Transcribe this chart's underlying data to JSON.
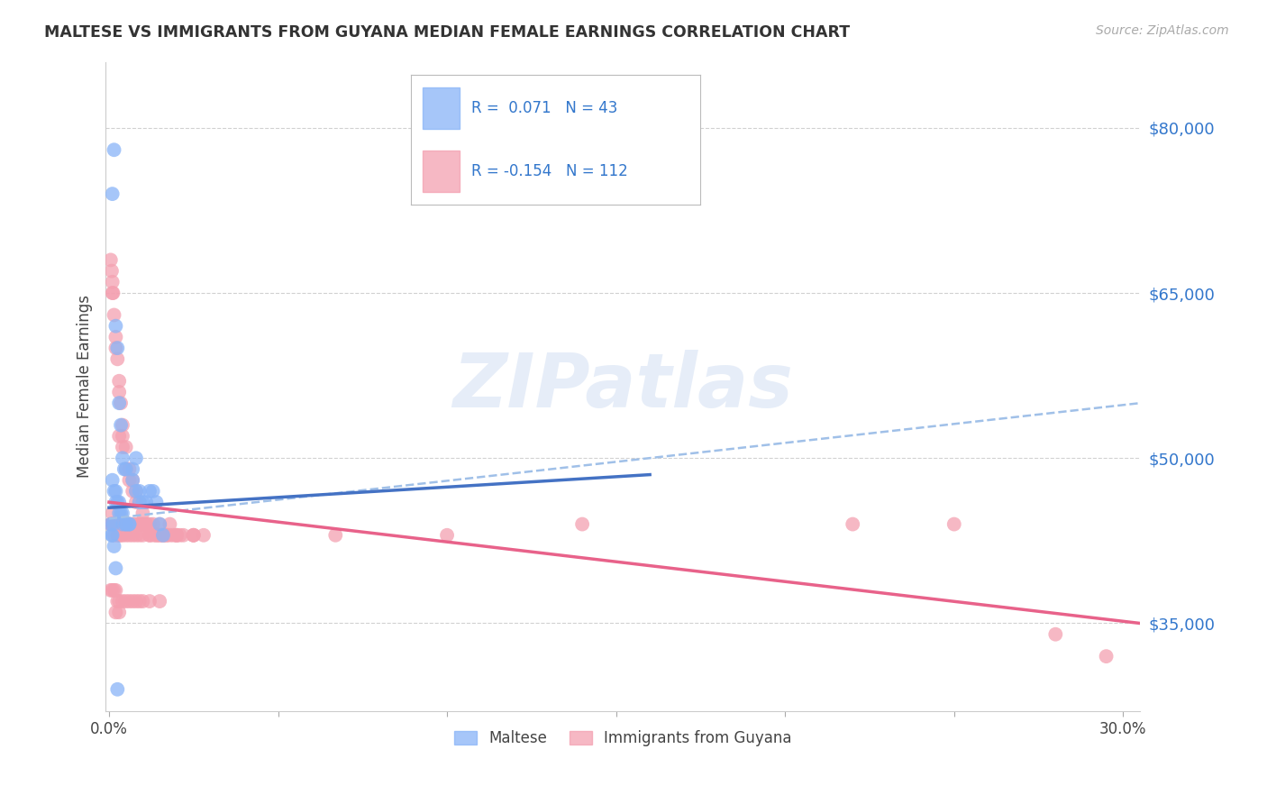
{
  "title": "MALTESE VS IMMIGRANTS FROM GUYANA MEDIAN FEMALE EARNINGS CORRELATION CHART",
  "source": "Source: ZipAtlas.com",
  "ylabel": "Median Female Earnings",
  "yticks": [
    35000,
    50000,
    65000,
    80000
  ],
  "ytick_labels": [
    "$35,000",
    "$50,000",
    "$65,000",
    "$80,000"
  ],
  "ylim": [
    27000,
    86000
  ],
  "xlim": [
    -0.001,
    0.305
  ],
  "legend_blue_r": "0.071",
  "legend_blue_n": "43",
  "legend_pink_r": "-0.154",
  "legend_pink_n": "112",
  "legend_label_blue": "Maltese",
  "legend_label_pink": "Immigrants from Guyana",
  "blue_color": "#89b4f7",
  "pink_color": "#f4a0b0",
  "blue_line_color": "#4472c4",
  "pink_line_color": "#e8628a",
  "blue_dash_color": "#a0c0e8",
  "watermark": "ZIPatlas",
  "blue_scatter_x": [
    0.001,
    0.0015,
    0.002,
    0.0025,
    0.003,
    0.0035,
    0.004,
    0.0045,
    0.005,
    0.001,
    0.0015,
    0.002,
    0.002,
    0.0025,
    0.003,
    0.003,
    0.0035,
    0.004,
    0.004,
    0.005,
    0.005,
    0.006,
    0.006,
    0.007,
    0.007,
    0.008,
    0.008,
    0.009,
    0.009,
    0.01,
    0.011,
    0.012,
    0.013,
    0.014,
    0.015,
    0.016,
    0.0005,
    0.0008,
    0.001,
    0.0012,
    0.0015,
    0.002,
    0.0025
  ],
  "blue_scatter_y": [
    74000,
    78000,
    62000,
    60000,
    55000,
    53000,
    50000,
    49000,
    49000,
    48000,
    47000,
    47000,
    46000,
    46000,
    46000,
    45000,
    45000,
    45000,
    44000,
    44000,
    44000,
    44000,
    44000,
    48000,
    49000,
    47000,
    50000,
    46000,
    47000,
    46000,
    46000,
    47000,
    47000,
    46000,
    44000,
    43000,
    44000,
    43000,
    43000,
    44000,
    42000,
    40000,
    29000
  ],
  "pink_scatter_x": [
    0.0005,
    0.0008,
    0.001,
    0.001,
    0.0012,
    0.0015,
    0.0015,
    0.002,
    0.002,
    0.0025,
    0.0025,
    0.003,
    0.003,
    0.003,
    0.0035,
    0.0035,
    0.004,
    0.004,
    0.0045,
    0.005,
    0.005,
    0.006,
    0.006,
    0.006,
    0.007,
    0.007,
    0.008,
    0.008,
    0.009,
    0.009,
    0.01,
    0.01,
    0.011,
    0.012,
    0.013,
    0.014,
    0.015,
    0.016,
    0.017,
    0.018,
    0.019,
    0.02,
    0.021,
    0.022,
    0.025,
    0.0005,
    0.0008,
    0.001,
    0.001,
    0.0012,
    0.0015,
    0.002,
    0.002,
    0.0025,
    0.003,
    0.003,
    0.0035,
    0.004,
    0.004,
    0.005,
    0.006,
    0.007,
    0.008,
    0.009,
    0.01,
    0.012,
    0.015,
    0.02,
    0.025,
    0.028,
    0.0005,
    0.001,
    0.0015,
    0.002,
    0.0025,
    0.003,
    0.004,
    0.005,
    0.006,
    0.007,
    0.008,
    0.009,
    0.01,
    0.012,
    0.015,
    0.067,
    0.1,
    0.14,
    0.22,
    0.25,
    0.003,
    0.004,
    0.005,
    0.006,
    0.007,
    0.008,
    0.009,
    0.01,
    0.011,
    0.012,
    0.013,
    0.014,
    0.015,
    0.016,
    0.017,
    0.018,
    0.02,
    0.025,
    0.28,
    0.295,
    0.002,
    0.003
  ],
  "pink_scatter_y": [
    44000,
    44000,
    45000,
    44000,
    44000,
    44000,
    43000,
    44000,
    44000,
    44000,
    43000,
    44000,
    44000,
    43000,
    44000,
    43000,
    44000,
    43000,
    44000,
    44000,
    43000,
    44000,
    44000,
    43000,
    44000,
    43000,
    44000,
    43000,
    44000,
    43000,
    44000,
    43000,
    44000,
    43000,
    44000,
    43000,
    43000,
    43000,
    43000,
    44000,
    43000,
    43000,
    43000,
    43000,
    43000,
    68000,
    67000,
    66000,
    65000,
    65000,
    63000,
    61000,
    60000,
    59000,
    57000,
    56000,
    55000,
    53000,
    52000,
    51000,
    49000,
    48000,
    47000,
    46000,
    45000,
    44000,
    44000,
    43000,
    43000,
    43000,
    38000,
    38000,
    38000,
    38000,
    37000,
    37000,
    37000,
    37000,
    37000,
    37000,
    37000,
    37000,
    37000,
    37000,
    37000,
    43000,
    43000,
    44000,
    44000,
    44000,
    52000,
    51000,
    49000,
    48000,
    47000,
    46000,
    44000,
    44000,
    44000,
    43000,
    43000,
    43000,
    43000,
    43000,
    43000,
    43000,
    43000,
    43000,
    34000,
    32000,
    36000,
    36000
  ]
}
